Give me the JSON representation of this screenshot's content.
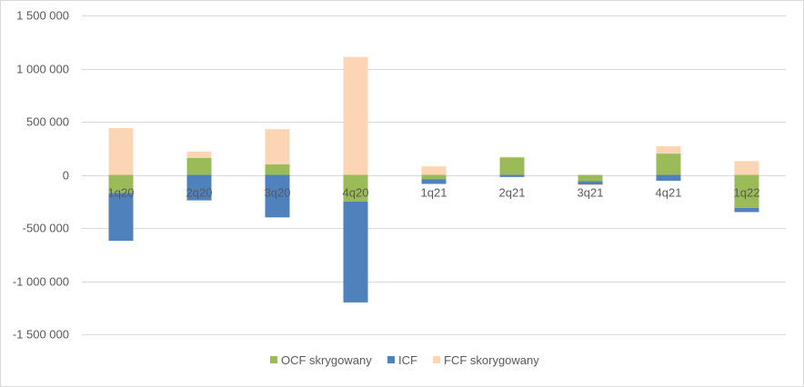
{
  "chart_data": {
    "type": "bar",
    "stacked": true,
    "categories": [
      "1q20",
      "2q20",
      "3q20",
      "4q20",
      "1q21",
      "2q21",
      "3q21",
      "4q21",
      "1q22"
    ],
    "series": [
      {
        "name": "OCF skrygowany",
        "color": "#9bbb59",
        "values": [
          -170000,
          160000,
          100000,
          -250000,
          -40000,
          165000,
          -60000,
          200000,
          -310000
        ]
      },
      {
        "name": "ICF",
        "color": "#4f81bd",
        "values": [
          -450000,
          -240000,
          -400000,
          -950000,
          -45000,
          -20000,
          -30000,
          -55000,
          -40000
        ]
      },
      {
        "name": "FCF skorygowany",
        "color": "#fcd5b4",
        "values": [
          440000,
          60000,
          330000,
          1110000,
          80000,
          5000,
          -10000,
          70000,
          130000
        ]
      }
    ],
    "ylim": [
      -1500000,
      1500000
    ],
    "yticks": [
      1500000,
      1000000,
      500000,
      0,
      -500000,
      -1000000,
      -1500000
    ],
    "ytick_labels": [
      "1 500 000",
      "1 000 000",
      "500 000",
      "0",
      "-500 000",
      "-1 000 000",
      "-1 500 000"
    ],
    "grid": true,
    "legend_position": "bottom",
    "title": "",
    "xlabel": "",
    "ylabel": ""
  }
}
